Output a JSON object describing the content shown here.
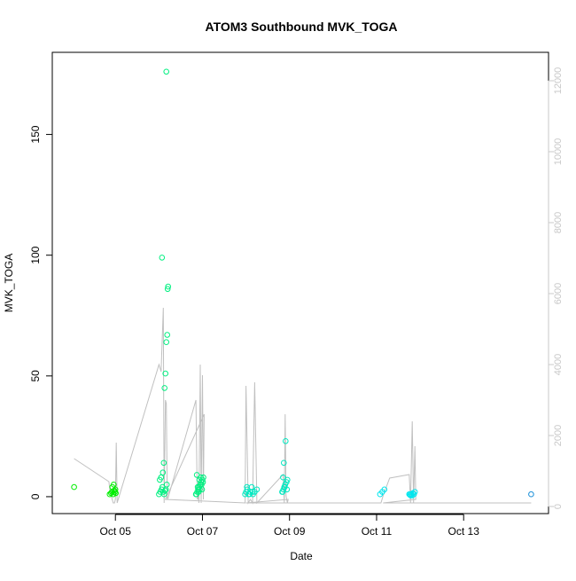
{
  "chart_data": {
    "type": "scatter",
    "title": "ATOM3 Southbound MVK_TOGA",
    "xlabel": "Date",
    "ylabel": "MVK_TOGA",
    "x_unit": "day of October (2017)",
    "xlim": [
      3.55,
      14.95
    ],
    "ylim": [
      -7,
      184
    ],
    "y2lim": [
      -200,
      12800
    ],
    "x_ticks": [
      {
        "value": 5,
        "label": "Oct 05"
      },
      {
        "value": 7,
        "label": "Oct 07"
      },
      {
        "value": 9,
        "label": "Oct 09"
      },
      {
        "value": 11,
        "label": "Oct 11"
      },
      {
        "value": 13,
        "label": "Oct 13"
      }
    ],
    "y_ticks": [
      {
        "value": 0,
        "label": "0"
      },
      {
        "value": 50,
        "label": "50"
      },
      {
        "value": 100,
        "label": "100"
      },
      {
        "value": 150,
        "label": "150"
      }
    ],
    "y2_ticks": [
      {
        "value": 0,
        "label": "0"
      },
      {
        "value": 2000,
        "label": "2000"
      },
      {
        "value": 4000,
        "label": "4000"
      },
      {
        "value": 6000,
        "label": "6000"
      },
      {
        "value": 8000,
        "label": "8000"
      },
      {
        "value": 10000,
        "label": "10000"
      },
      {
        "value": 12000,
        "label": "12000"
      }
    ],
    "grid": false,
    "legend": "none",
    "colors": {
      "point_green": "#00ee00",
      "point_springgreen": "#00f080",
      "point_aqua": "#00e8c0",
      "point_cyan": "#00e6ee",
      "point_blue": "#1a8fd8",
      "line": "#c0c0c0",
      "axis": "#000000",
      "y2_axis": "#c8c8c8"
    },
    "point_groups": [
      {
        "color": "#00ee00",
        "x": [
          4.05
        ],
        "y": [
          4
        ]
      },
      {
        "color": "#00ee00",
        "x": [
          4.87,
          4.9,
          4.92,
          4.95,
          4.97,
          5.0,
          4.93,
          4.96,
          4.99,
          5.01
        ],
        "y": [
          1,
          1.5,
          2,
          1,
          2.5,
          3,
          4,
          5,
          2,
          1.5
        ]
      },
      {
        "color": "#00f080",
        "x": [
          6.0,
          6.03,
          6.06,
          6.08,
          6.1,
          6.12,
          6.14,
          6.16,
          6.18,
          6.02,
          6.05,
          6.09,
          6.11,
          6.13,
          6.15,
          6.17,
          6.19,
          6.2,
          6.21,
          6.07
        ],
        "y": [
          1,
          2,
          3,
          4,
          2,
          1,
          2.5,
          3,
          5,
          7,
          8,
          10,
          14,
          45,
          51,
          64,
          67,
          86,
          87,
          99
        ]
      },
      {
        "color": "#00f080",
        "x": [
          6.17
        ],
        "y": [
          176
        ]
      },
      {
        "color": "#00f080",
        "x": [
          6.85,
          6.88,
          6.9,
          6.92,
          6.95,
          6.97,
          7.0,
          7.02,
          6.87,
          6.91,
          6.94,
          6.98,
          7.01,
          6.86,
          6.89,
          6.93,
          6.96,
          6.99
        ],
        "y": [
          1,
          2,
          3,
          4,
          5,
          6,
          7,
          8,
          9,
          2,
          3,
          5,
          6,
          1,
          4,
          7,
          8,
          3
        ]
      },
      {
        "color": "#00e8c0",
        "x": [
          7.98,
          8.0,
          8.03,
          8.06,
          8.1,
          8.13,
          8.16,
          8.2,
          8.25,
          8.02,
          8.08,
          8.15
        ],
        "y": [
          1,
          2,
          3,
          1,
          2,
          4,
          1,
          2,
          3,
          4,
          1,
          2
        ]
      },
      {
        "color": "#00e8c0",
        "x": [
          8.83,
          8.86,
          8.88,
          8.9,
          8.93,
          8.95,
          8.85,
          8.87,
          8.91,
          8.94,
          8.84,
          8.89
        ],
        "y": [
          2,
          3,
          4,
          5,
          6,
          7,
          8,
          14,
          23,
          3,
          2,
          4
        ]
      },
      {
        "color": "#00e6ee",
        "x": [
          11.08,
          11.13,
          11.18
        ],
        "y": [
          1,
          2,
          3
        ]
      },
      {
        "color": "#00e6ee",
        "x": [
          11.75,
          11.78,
          11.8,
          11.83,
          11.86,
          11.88,
          11.77,
          11.82
        ],
        "y": [
          1,
          0.5,
          1,
          1.5,
          1,
          2,
          1,
          0.5
        ]
      },
      {
        "color": "#1a8fd8",
        "x": [
          14.55
        ],
        "y": [
          1
        ]
      }
    ],
    "line_series": {
      "axis": "y2",
      "x": [
        4.05,
        4.85,
        4.88,
        4.95,
        4.98,
        5.0,
        5.02,
        5.04,
        6.0,
        6.05,
        6.1,
        6.12,
        6.15,
        6.17,
        6.19,
        6.2,
        6.85,
        6.88,
        6.9,
        6.92,
        6.95,
        6.97,
        7.0,
        7.02,
        7.04,
        6.15,
        7.98,
        8.0,
        8.05,
        8.1,
        8.15,
        8.2,
        8.25,
        8.85,
        8.88,
        8.9,
        8.92,
        8.95,
        8.97,
        8.0,
        11.1,
        11.15,
        11.3,
        11.75,
        11.78,
        11.82,
        11.85,
        11.88,
        11.9,
        11.15,
        14.55
      ],
      "y": [
        1350,
        700,
        400,
        100,
        100,
        200,
        1800,
        100,
        4000,
        3800,
        5600,
        100,
        3000,
        2900,
        300,
        200,
        3000,
        200,
        300,
        100,
        4000,
        100,
        3700,
        200,
        2600,
        200,
        100,
        3400,
        100,
        200,
        100,
        3500,
        100,
        900,
        100,
        2600,
        300,
        100,
        200,
        100,
        100,
        300,
        800,
        900,
        100,
        2400,
        100,
        1700,
        200,
        100,
        100
      ]
    }
  }
}
